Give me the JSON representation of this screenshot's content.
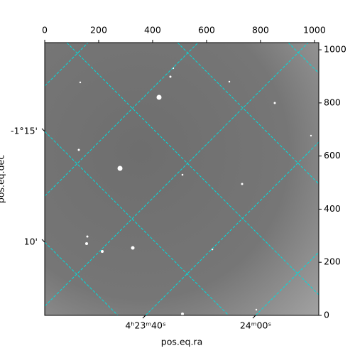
{
  "chart_data": {
    "type": "image",
    "xlabel": "pos.eq.ra",
    "ylabel": "pos.eq.dec",
    "xlim": [
      0,
      1016
    ],
    "ylim": [
      0,
      1027
    ],
    "xticks": [
      0,
      200,
      400,
      600,
      800,
      1000
    ],
    "yticks": [
      0,
      200,
      400,
      600,
      800,
      1000
    ],
    "ra_ticks": [
      {
        "value": 65.91667,
        "label": "4ʰ23ᵐ40ˢ"
      },
      {
        "value": 66.0,
        "label": "24ᵐ00ˢ"
      }
    ],
    "dec_ticks": [
      {
        "value": -1.25,
        "label": "-1°15'"
      },
      {
        "value": -1.16667,
        "label": "10'"
      }
    ],
    "grid": true,
    "grid_color": "#00dcdc"
  }
}
